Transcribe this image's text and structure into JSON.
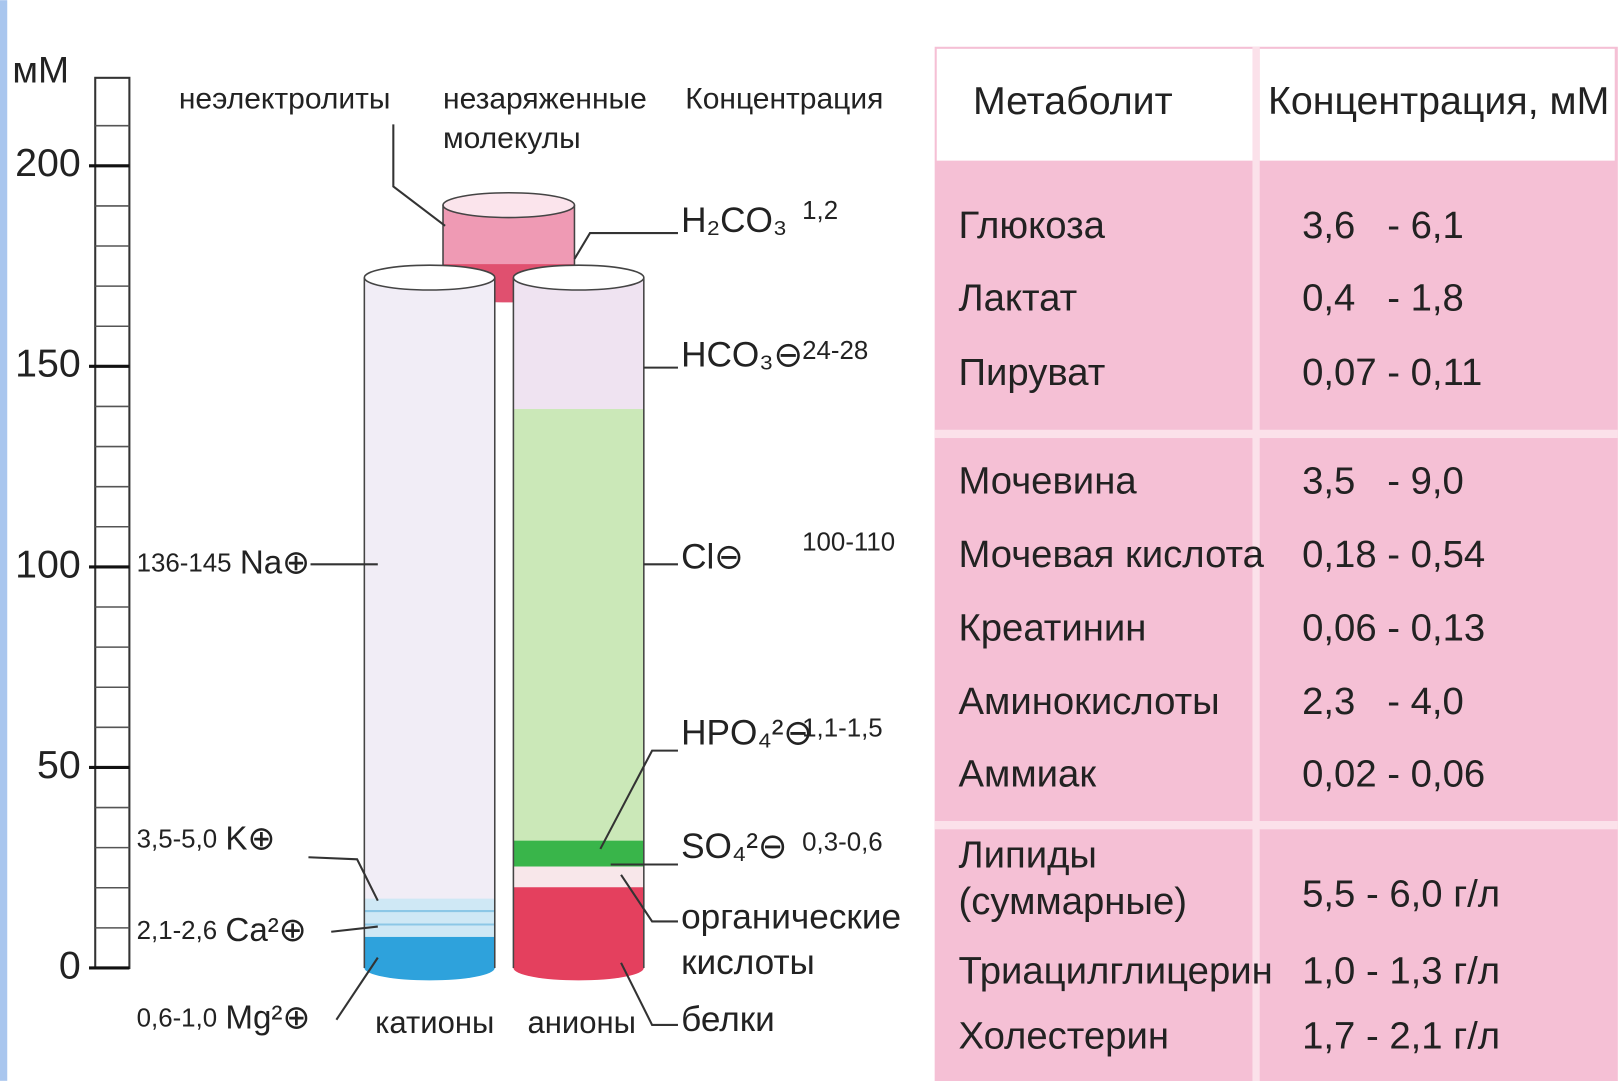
{
  "scale": {
    "unit": "мМ",
    "ticks": [
      200,
      150,
      100,
      50,
      0
    ]
  },
  "headings": {
    "nonelectrolytes": "неэлектролиты",
    "uncharged": [
      "незаряженные",
      "молекулы"
    ],
    "concentration": "Концентрация"
  },
  "cations": [
    {
      "range": "136-145",
      "ion": "Na⊕"
    },
    {
      "range": "3,5-5,0",
      "ion": "K⊕"
    },
    {
      "range": "2,1-2,6",
      "ion": "Ca²⊕"
    },
    {
      "range": "0,6-1,0",
      "ion": "Mg²⊕"
    }
  ],
  "anions": [
    {
      "ion": "H₂CO₃",
      "range": "1,2"
    },
    {
      "ion": "HCO₃⊖",
      "range": "24-28"
    },
    {
      "ion": "Cl⊖",
      "range": "100-110"
    },
    {
      "ion": "HPO₄²⊖",
      "range": "1,1-1,5"
    },
    {
      "ion": "SO₄²⊖",
      "range": "0,3-0,6"
    },
    {
      "ion": [
        "органические",
        "кислоты"
      ]
    },
    {
      "ion": [
        "белки"
      ]
    }
  ],
  "columns": {
    "cations": "катионы",
    "anions": "анионы"
  },
  "table": {
    "header": [
      "Метаболит",
      "Концентрация, мМ"
    ],
    "groups": [
      [
        {
          "name": [
            "Глюкоза"
          ],
          "value": "3,6   - 6,1"
        },
        {
          "name": [
            "Лактат"
          ],
          "value": "0,4   - 1,8"
        },
        {
          "name": [
            "Пируват"
          ],
          "value": "0,07 - 0,11"
        }
      ],
      [
        {
          "name": [
            "Мочевина"
          ],
          "value": "3,5   - 9,0"
        },
        {
          "name": [
            "Мочевая кислота"
          ],
          "value": "0,18 - 0,54"
        },
        {
          "name": [
            "Креатинин"
          ],
          "value": "0,06 - 0,13"
        },
        {
          "name": [
            "Аминокислоты"
          ],
          "value": "2,3   - 4,0"
        },
        {
          "name": [
            "Аммиак"
          ],
          "value": "0,02 - 0,06"
        }
      ],
      [
        {
          "name": [
            "Липиды",
            "(суммарные)"
          ],
          "value": "5,5 - 6,0 г/л"
        },
        {
          "name": [
            "Триацилглицерин"
          ],
          "value": "1,0 - 1,3 г/л"
        },
        {
          "name": [
            "Холестерин"
          ],
          "value": "1,7 - 2,1 г/л"
        }
      ]
    ]
  }
}
